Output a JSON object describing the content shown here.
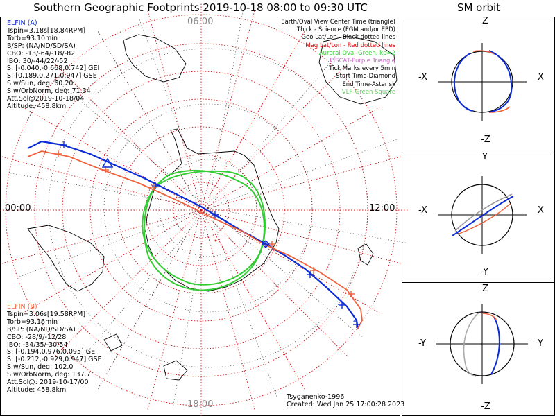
{
  "title": "Southern Geographic Footprints 2019-10-18 08:00 to 09:30 UTC",
  "sm_title": "SM orbit",
  "chart_data": {
    "type": "map",
    "projection": "south-polar",
    "mlt_labels": {
      "left": "00:00",
      "right": "12:00",
      "top": "06:00",
      "bottom": "18:00"
    },
    "colors": {
      "elfin_a": "#0b2bd6",
      "elfin_b": "#f0603a",
      "aurora": "#33cc33",
      "grid": "#d01010",
      "pos_label": "#dd2222"
    },
    "elfin_a": {
      "name": "ELFIN (A)",
      "lines": [
        "Tspin=3.18s[18.84RPM]",
        "Torb=93.10min",
        "B/SP: (NA/ND/SD/SA)",
        "CBO: -13/-64/-18/-82",
        "IBO: 30/-44/22/-52",
        "S: [-0.040,-0.668,0.742] GEI",
        "S: [0.189,0.271,0.947] GSE",
        "S w/Sun, deg: 60.20",
        "S w/OrbNorm, deg: 71.34",
        "Att.Sol@2019-10-18/04",
        "Altitude: 458.8km"
      ]
    },
    "elfin_b": {
      "name": "ELFIN (B)",
      "lines": [
        "Tspin=3.06s[19.58RPM]",
        "Torb=93.16min",
        "B/SP: (NA/ND/SD/SA)",
        "CBO: -28/9/-12/28",
        "IBO: -34/35/-30/54",
        "S: [-0.194,0.976,0.095] GEI",
        "S: [-0.212,-0.929,0.947] GSE",
        "S w/Sun, deg: 102.0",
        "S w/OrbNorm, deg: 137.7",
        "Att.Sol@: 2019-10-17/00",
        "Altitude: 458.8km"
      ]
    },
    "legend": [
      {
        "text": "Earth/Oval View Center Time (triangle)",
        "color": "#000000"
      },
      {
        "text": "Thick - Science (FGM and/or EPD)",
        "color": "#000000"
      },
      {
        "text": "Geo Lat/Lon - Black dotted lines",
        "color": "#000000"
      },
      {
        "text": "Mag Lat/Lon - Red dotted lines",
        "color": "#dd0000"
      },
      {
        "text": "Auroral Oval-Green, kp=2",
        "color": "#33cc33"
      },
      {
        "text": "EISCAT-Purple Triangle",
        "color": "#cc66cc"
      },
      {
        "text": "Tick Marks every 5min",
        "color": "#000000"
      },
      {
        "text": "Start Time-Diamond",
        "color": "#000000"
      },
      {
        "text": "End Time-Asterisk",
        "color": "#000000"
      },
      {
        "text": "VLF-Green Square",
        "color": "#66cc66"
      }
    ],
    "footer": {
      "model": "Tsyganenko-1996",
      "created": "Created: Wed Jan 25 17:00:28 2023"
    },
    "sm_panels": [
      {
        "axes": {
          "top": "Z",
          "bottom": "-Z",
          "left": "-X",
          "right": "X"
        }
      },
      {
        "axes": {
          "top": "Y",
          "bottom": "-Y",
          "left": "-X",
          "right": "X"
        }
      },
      {
        "axes": {
          "top": "Z",
          "bottom": "-Z",
          "left": "-Y",
          "right": "Y"
        }
      }
    ]
  }
}
